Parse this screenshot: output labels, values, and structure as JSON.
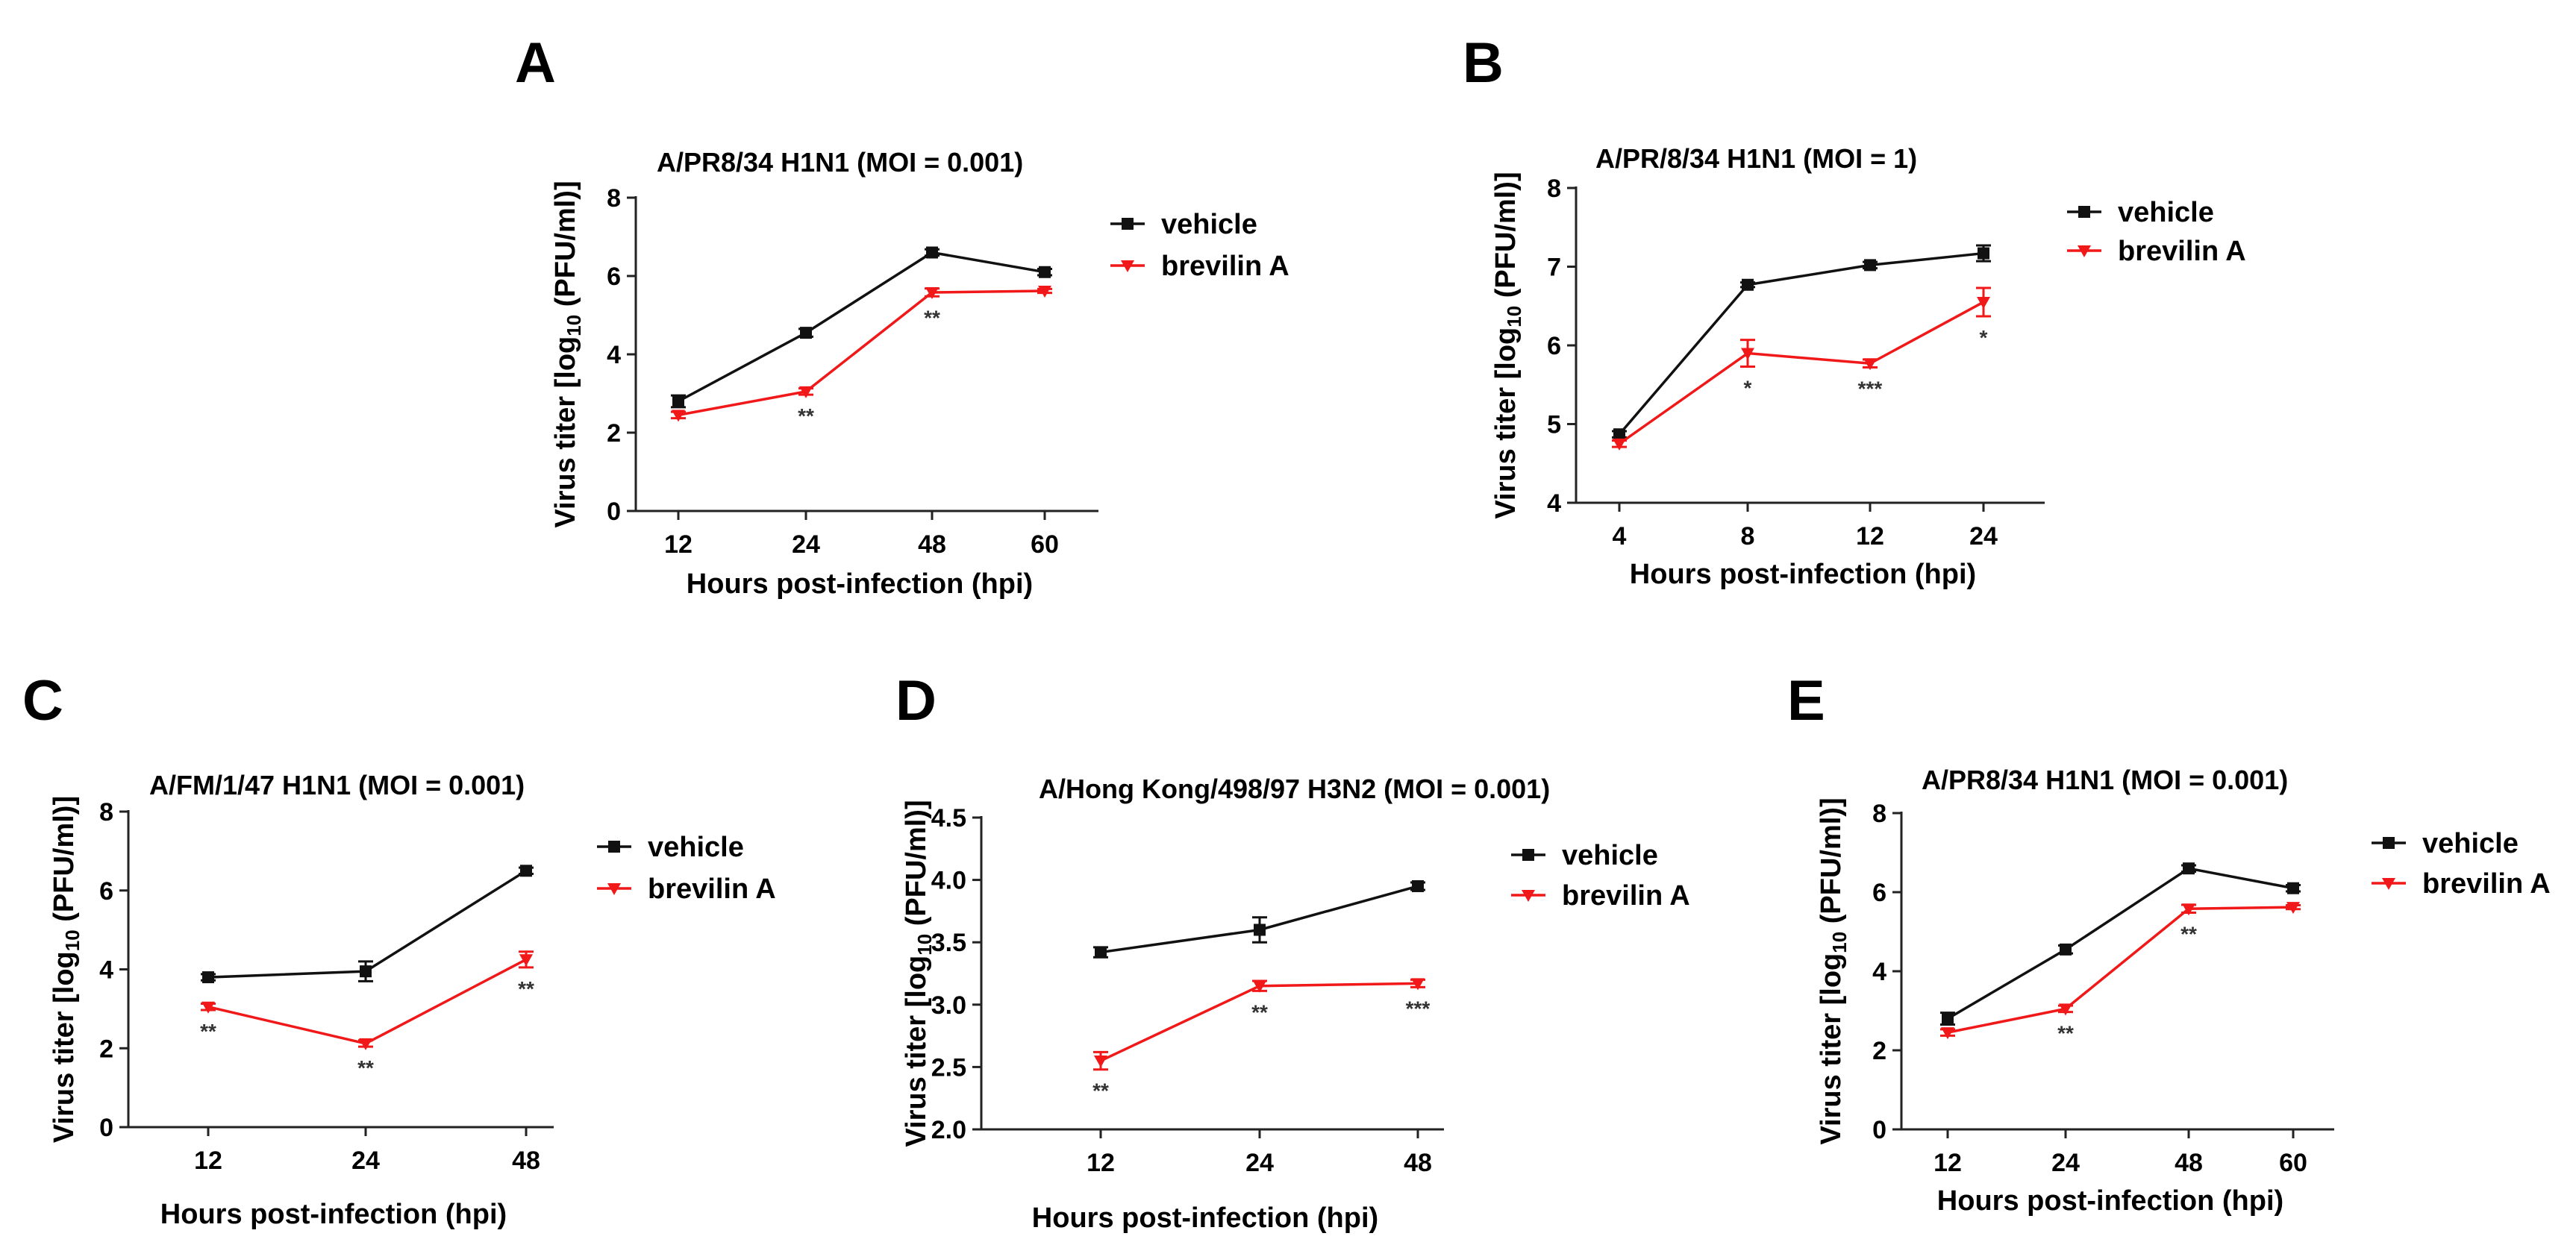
{
  "colors": {
    "vehicle": "#111111",
    "brevilin": "#f01818",
    "axis": "#222222"
  },
  "chart_data": [
    {
      "type": "line",
      "letter": "A",
      "title": "A/PR8/34 H1N1 (MOI = 0.001)",
      "ylabel_pre": "Virus titer [log",
      "ylabel_sub": "10",
      "ylabel_post": " (PFU/ml)]",
      "xlabel": "Hours post-infection (hpi)",
      "ylim": [
        0,
        8
      ],
      "yticks": [
        "0",
        "2",
        "4",
        "6",
        "8"
      ],
      "categories": [
        "12",
        "24",
        "48",
        "60"
      ],
      "series": [
        {
          "name": "vehicle",
          "values": [
            2.8,
            4.55,
            6.6,
            6.1
          ],
          "errors": [
            0.15,
            0.1,
            0.08,
            0.08
          ]
        },
        {
          "name": "brevilin A",
          "values": [
            2.45,
            3.05,
            5.58,
            5.62
          ],
          "errors": [
            0.08,
            0.08,
            0.1,
            0.05
          ]
        }
      ],
      "annotations": [
        {
          "category_index": 1,
          "label": "**"
        },
        {
          "category_index": 2,
          "label": "**"
        }
      ]
    },
    {
      "type": "line",
      "letter": "B",
      "title": "A/PR/8/34 H1N1 (MOI = 1)",
      "ylabel_pre": "Virus titer [log",
      "ylabel_sub": "10",
      "ylabel_post": " (PFU/ml)]",
      "xlabel": "Hours post-infection (hpi)",
      "ylim": [
        4,
        8
      ],
      "yticks": [
        "4",
        "5",
        "6",
        "7",
        "8"
      ],
      "categories": [
        "4",
        "8",
        "12",
        "24"
      ],
      "series": [
        {
          "name": "vehicle",
          "values": [
            4.87,
            6.77,
            7.02,
            7.17
          ],
          "errors": [
            0.04,
            0.03,
            0.04,
            0.1
          ]
        },
        {
          "name": "brevilin A",
          "values": [
            4.75,
            5.9,
            5.77,
            6.55
          ],
          "errors": [
            0.04,
            0.17,
            0.05,
            0.18
          ]
        }
      ],
      "annotations": [
        {
          "category_index": 1,
          "label": "*"
        },
        {
          "category_index": 2,
          "label": "***"
        },
        {
          "category_index": 3,
          "label": "*"
        }
      ]
    },
    {
      "type": "line",
      "letter": "C",
      "title": "A/FM/1/47 H1N1 (MOI = 0.001)",
      "ylabel_pre": "Virus titer [log",
      "ylabel_sub": "10",
      "ylabel_post": " (PFU/ml)]",
      "xlabel": "Hours post-infection (hpi)",
      "ylim": [
        0,
        8
      ],
      "yticks": [
        "0",
        "2",
        "4",
        "6",
        "8"
      ],
      "categories": [
        "12",
        "24",
        "48"
      ],
      "series": [
        {
          "name": "vehicle",
          "values": [
            3.8,
            3.95,
            6.5
          ],
          "errors": [
            0.08,
            0.25,
            0.08
          ]
        },
        {
          "name": "brevilin A",
          "values": [
            3.05,
            2.12,
            4.25
          ],
          "errors": [
            0.08,
            0.08,
            0.2
          ]
        }
      ],
      "annotations": [
        {
          "category_index": 0,
          "label": "**"
        },
        {
          "category_index": 1,
          "label": "**"
        },
        {
          "category_index": 2,
          "label": "**"
        }
      ]
    },
    {
      "type": "line",
      "letter": "D",
      "title": "A/Hong Kong/498/97 H3N2 (MOI = 0.001)",
      "ylabel_pre": "Virus titer [log",
      "ylabel_sub": "10",
      "ylabel_post": " (PFU/ml)]",
      "xlabel": "Hours post-infection (hpi)",
      "ylim": [
        2.0,
        4.5
      ],
      "yticks": [
        "2.0",
        "2.5",
        "3.0",
        "3.5",
        "4.0",
        "4.5"
      ],
      "categories": [
        "12",
        "24",
        "48"
      ],
      "series": [
        {
          "name": "vehicle",
          "values": [
            3.42,
            3.6,
            3.95
          ],
          "errors": [
            0.04,
            0.1,
            0.03
          ]
        },
        {
          "name": "brevilin A",
          "values": [
            2.55,
            3.15,
            3.17
          ],
          "errors": [
            0.07,
            0.04,
            0.03
          ]
        }
      ],
      "annotations": [
        {
          "category_index": 0,
          "label": "**"
        },
        {
          "category_index": 1,
          "label": "**"
        },
        {
          "category_index": 2,
          "label": "***"
        }
      ]
    },
    {
      "type": "line",
      "letter": "E",
      "title": "A/PR8/34 H1N1 (MOI = 0.001)",
      "ylabel_pre": "Virus titer [log",
      "ylabel_sub": "10",
      "ylabel_post": " (PFU/ml)]",
      "xlabel": "Hours post-infection (hpi)",
      "ylim": [
        0,
        8
      ],
      "yticks": [
        "0",
        "2",
        "4",
        "6",
        "8"
      ],
      "categories": [
        "12",
        "24",
        "48",
        "60"
      ],
      "series": [
        {
          "name": "vehicle",
          "values": [
            2.8,
            4.55,
            6.6,
            6.1
          ],
          "errors": [
            0.15,
            0.1,
            0.08,
            0.08
          ]
        },
        {
          "name": "brevilin A",
          "values": [
            2.45,
            3.05,
            5.58,
            5.62
          ],
          "errors": [
            0.08,
            0.08,
            0.1,
            0.05
          ]
        }
      ],
      "annotations": [
        {
          "category_index": 1,
          "label": "**"
        },
        {
          "category_index": 2,
          "label": "**"
        }
      ]
    }
  ]
}
